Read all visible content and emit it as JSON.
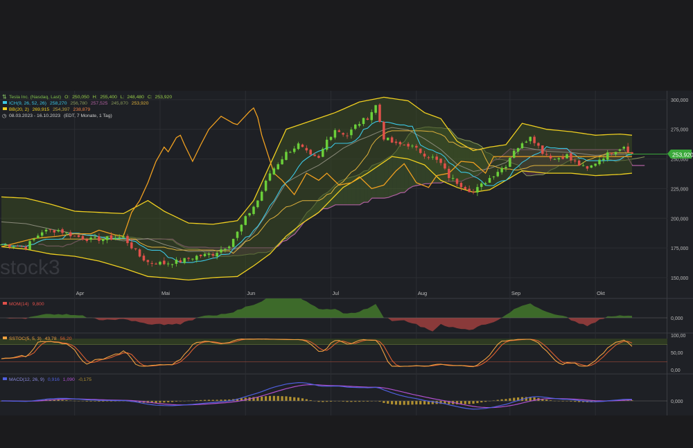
{
  "chart_data": {
    "type": "candlestick",
    "instrument": "Tesla Inc. (Nasdaq, Last)",
    "legend": {
      "main": {
        "name": "Tesla Inc. (Nasdaq, Last)",
        "o_label": "O:",
        "o": "250,050",
        "h_label": "H:",
        "h": "255,400",
        "l_label": "L:",
        "l": "248,480",
        "c_label": "C:",
        "c": "253,920"
      },
      "ich": {
        "name": "ICH(9, 26, 52, 26)",
        "values": [
          "258,270",
          "256,780",
          "257,525",
          "245,870",
          "253,920"
        ]
      },
      "bb": {
        "name": "BB(20, 2)",
        "values": [
          "269,915",
          "254,397",
          "238,879"
        ]
      },
      "range": {
        "text": "08.03.2023 - 16.10.2023",
        "note": "(EDT, 7 Monate, 1 Tag)"
      }
    },
    "last_price": "253,920",
    "y_ticks": [
      "300,000",
      "275,000",
      "250,000",
      "225,000",
      "200,000",
      "175,000",
      "150,000"
    ],
    "y_tick_values": [
      300,
      275,
      250,
      225,
      200,
      175,
      150
    ],
    "ylim": [
      136,
      304
    ],
    "x_months": [
      "Apr",
      "Mai",
      "Jun",
      "Jul",
      "Aug",
      "Sep",
      "Okt"
    ],
    "x_month_index": [
      18,
      39,
      60,
      81,
      102,
      125,
      146
    ],
    "n_bars": 156,
    "close_path": [
      [
        0,
        178
      ],
      [
        6,
        176
      ],
      [
        10,
        189
      ],
      [
        14,
        190
      ],
      [
        18,
        185
      ],
      [
        22,
        182
      ],
      [
        26,
        183
      ],
      [
        30,
        184
      ],
      [
        34,
        168
      ],
      [
        36,
        163
      ],
      [
        40,
        162
      ],
      [
        44,
        164
      ],
      [
        48,
        168
      ],
      [
        52,
        170
      ],
      [
        56,
        178
      ],
      [
        58,
        188
      ],
      [
        60,
        200
      ],
      [
        63,
        215
      ],
      [
        66,
        238
      ],
      [
        70,
        255
      ],
      [
        73,
        262
      ],
      [
        76,
        252
      ],
      [
        78,
        250
      ],
      [
        80,
        266
      ],
      [
        82,
        275
      ],
      [
        85,
        270
      ],
      [
        87,
        278
      ],
      [
        90,
        285
      ],
      [
        92,
        295
      ],
      [
        94,
        268
      ],
      [
        97,
        262
      ],
      [
        100,
        262
      ],
      [
        102,
        258
      ],
      [
        104,
        254
      ],
      [
        106,
        251
      ],
      [
        108,
        246
      ],
      [
        110,
        235
      ],
      [
        113,
        228
      ],
      [
        116,
        222
      ],
      [
        119,
        231
      ],
      [
        122,
        240
      ],
      [
        124,
        245
      ],
      [
        126,
        258
      ],
      [
        128,
        262
      ],
      [
        130,
        270
      ],
      [
        133,
        256
      ],
      [
        136,
        250
      ],
      [
        139,
        253
      ],
      [
        140,
        249
      ],
      [
        142,
        245
      ],
      [
        144,
        241
      ],
      [
        147,
        250
      ],
      [
        150,
        256
      ],
      [
        153,
        261
      ],
      [
        155,
        254
      ]
    ],
    "bb_upper_path": [
      [
        0,
        218
      ],
      [
        6,
        217
      ],
      [
        12,
        212
      ],
      [
        18,
        206
      ],
      [
        24,
        205
      ],
      [
        30,
        204
      ],
      [
        36,
        215
      ],
      [
        40,
        206
      ],
      [
        46,
        196
      ],
      [
        52,
        195
      ],
      [
        58,
        198
      ],
      [
        62,
        215
      ],
      [
        66,
        245
      ],
      [
        70,
        275
      ],
      [
        76,
        282
      ],
      [
        82,
        289
      ],
      [
        88,
        298
      ],
      [
        94,
        302
      ],
      [
        100,
        299
      ],
      [
        104,
        289
      ],
      [
        108,
        284
      ],
      [
        112,
        265
      ],
      [
        116,
        257
      ],
      [
        120,
        260
      ],
      [
        124,
        262
      ],
      [
        128,
        280
      ],
      [
        134,
        275
      ],
      [
        140,
        273
      ],
      [
        146,
        270
      ],
      [
        152,
        271
      ],
      [
        155,
        270
      ]
    ],
    "bb_lower_path": [
      [
        0,
        176
      ],
      [
        6,
        174
      ],
      [
        12,
        170
      ],
      [
        18,
        168
      ],
      [
        24,
        164
      ],
      [
        30,
        158
      ],
      [
        36,
        151
      ],
      [
        40,
        150
      ],
      [
        46,
        148
      ],
      [
        52,
        150
      ],
      [
        58,
        151
      ],
      [
        62,
        160
      ],
      [
        66,
        170
      ],
      [
        70,
        185
      ],
      [
        74,
        196
      ],
      [
        78,
        205
      ],
      [
        84,
        226
      ],
      [
        90,
        238
      ],
      [
        96,
        252
      ],
      [
        100,
        250
      ],
      [
        104,
        245
      ],
      [
        108,
        232
      ],
      [
        112,
        226
      ],
      [
        116,
        222
      ],
      [
        120,
        224
      ],
      [
        124,
        232
      ],
      [
        128,
        240
      ],
      [
        134,
        238
      ],
      [
        140,
        238
      ],
      [
        146,
        236
      ],
      [
        152,
        237
      ],
      [
        155,
        238
      ]
    ],
    "chikou_path": [
      [
        0,
        176
      ],
      [
        8,
        183
      ],
      [
        14,
        185
      ],
      [
        18,
        187
      ],
      [
        22,
        187
      ],
      [
        24,
        190
      ],
      [
        28,
        186
      ],
      [
        30,
        185
      ],
      [
        32,
        205
      ],
      [
        34,
        215
      ],
      [
        36,
        230
      ],
      [
        38,
        248
      ],
      [
        40,
        260
      ],
      [
        41,
        256
      ],
      [
        43,
        268
      ],
      [
        44,
        270
      ],
      [
        45,
        262
      ],
      [
        47,
        248
      ],
      [
        49,
        262
      ],
      [
        51,
        275
      ],
      [
        54,
        286
      ],
      [
        57,
        280
      ],
      [
        58,
        279
      ],
      [
        61,
        290
      ],
      [
        62,
        293
      ],
      [
        63,
        285
      ],
      [
        64,
        270
      ],
      [
        67,
        238
      ],
      [
        69,
        232
      ],
      [
        71,
        224
      ],
      [
        72,
        220
      ],
      [
        75,
        238
      ],
      [
        78,
        232
      ],
      [
        80,
        238
      ],
      [
        83,
        228
      ],
      [
        86,
        230
      ],
      [
        88,
        235
      ],
      [
        91,
        225
      ],
      [
        94,
        228
      ],
      [
        97,
        240
      ],
      [
        99,
        246
      ],
      [
        102,
        230
      ],
      [
        105,
        226
      ],
      [
        107,
        236
      ],
      [
        110,
        238
      ],
      [
        113,
        248
      ],
      [
        116,
        247
      ],
      [
        119,
        238
      ],
      [
        121,
        252
      ]
    ],
    "mom": {
      "label": "MOM(14)",
      "value": "9,800",
      "tick": "0,000"
    },
    "sstoc": {
      "label": "SSTOC(5, 5, 3)",
      "k": "43,78",
      "d": "56,20",
      "ticks": [
        "100,00",
        "50,00",
        "0,00"
      ]
    },
    "macd": {
      "label": "MACD(12, 26, 9)",
      "macd": "0,916",
      "signal": "1,090",
      "hist": "-0,175",
      "tick": "0,000"
    },
    "watermark": "stock3"
  },
  "colors": {
    "background": "#1e2025",
    "pane_bg": "#222428",
    "grid": "#2c2e33",
    "up": "#6bcf3a",
    "down": "#e0504a",
    "bb": "#f0d020",
    "tenkan": "#3cc8e6",
    "kijun": "#e0b23c",
    "chikou": "#f0a020",
    "span_a": "#8a9a5a",
    "span_b": "#b060a0",
    "price_label": "#3aa83a",
    "mom_pos": "#3d6a2a",
    "mom_neg": "#8a3a3a",
    "sstoc_k": "#f0a040",
    "sstoc_d": "#e06030",
    "macd_line": "#5060e0",
    "signal_line": "#b050d0",
    "hist": "#b09030"
  }
}
